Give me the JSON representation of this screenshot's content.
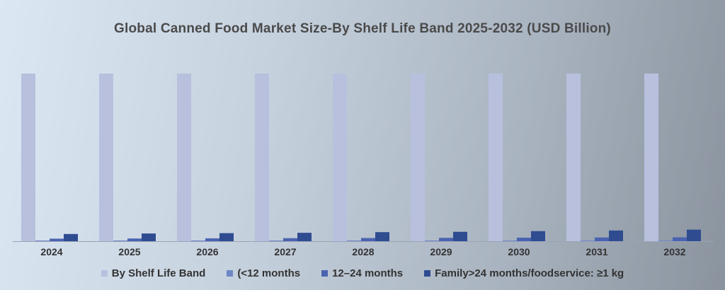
{
  "chart_data": {
    "type": "bar",
    "title": "Global Canned Food Market Size-By Shelf Life Band 2025-2032 (USD Billion)",
    "xlabel": "",
    "ylabel": "",
    "categories": [
      "2024",
      "2025",
      "2026",
      "2027",
      "2028",
      "2029",
      "2030",
      "2031",
      "2032"
    ],
    "series": [
      {
        "name": "By Shelf Life Band",
        "color": "#b8c0de",
        "values": [
          100,
          100,
          100,
          100,
          100,
          100,
          100,
          100,
          100
        ]
      },
      {
        "name": "(<12 months",
        "color": "#6f86c6",
        "values": [
          0.3,
          0.3,
          0.3,
          0.3,
          0.3,
          0.3,
          0.3,
          0.3,
          0.3
        ]
      },
      {
        "name": "12–24 months",
        "color": "#4a63b0",
        "values": [
          1.5,
          1.6,
          1.7,
          1.8,
          1.9,
          2.0,
          2.1,
          2.2,
          2.3
        ]
      },
      {
        "name": "Family>24 months/foodservice: ≥1 kg",
        "color": "#2f4c91",
        "values": [
          4.3,
          4.6,
          4.8,
          5.0,
          5.4,
          5.6,
          6.0,
          6.4,
          6.9
        ]
      }
    ],
    "ylim": [
      0,
      100
    ],
    "grid": false,
    "legend_position": "bottom"
  }
}
